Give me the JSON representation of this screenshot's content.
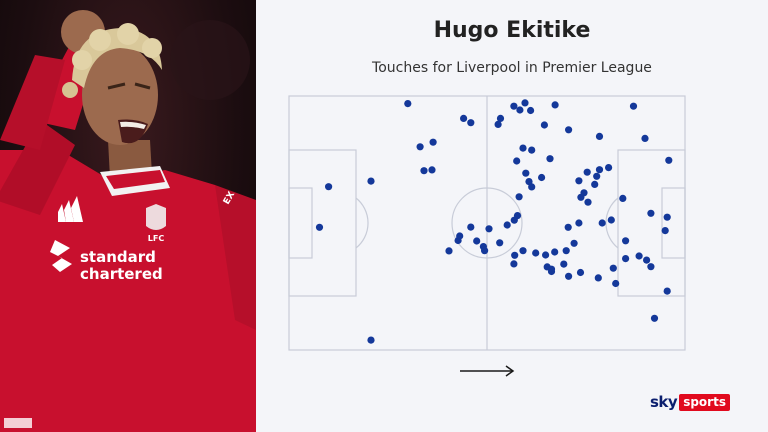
{
  "title": "Hugo Ekitike",
  "subtitle": "Touches for Liverpool in Premier League",
  "photo": {
    "shirt_sponsor": "standard chartered",
    "club_crest": "LFC"
  },
  "brand": {
    "sky": "sky",
    "sports": "sports"
  },
  "attack_direction_icon": "right-arrow-icon",
  "colors": {
    "dot": "#14389a",
    "pitch_line": "#c8ccd8",
    "background": "#f4f5f9",
    "shirt": "#c8102e"
  },
  "chart_data": {
    "type": "scatter",
    "title": "Hugo Ekitike",
    "subtitle": "Touches for Liverpool in Premier League",
    "xlim": [
      0,
      100
    ],
    "ylim": [
      0,
      100
    ],
    "direction_of_play": "left-to-right",
    "points": [
      [
        30.0,
        97.0
      ],
      [
        59.6,
        97.3
      ],
      [
        56.8,
        96.0
      ],
      [
        67.2,
        96.5
      ],
      [
        58.3,
        94.5
      ],
      [
        61.0,
        94.3
      ],
      [
        87.0,
        96.0
      ],
      [
        44.1,
        91.2
      ],
      [
        53.4,
        91.2
      ],
      [
        52.8,
        88.8
      ],
      [
        45.9,
        89.5
      ],
      [
        64.5,
        88.6
      ],
      [
        70.6,
        86.7
      ],
      [
        78.4,
        84.1
      ],
      [
        89.9,
        83.3
      ],
      [
        33.1,
        80.0
      ],
      [
        36.4,
        81.8
      ],
      [
        59.1,
        79.5
      ],
      [
        61.3,
        78.7
      ],
      [
        65.9,
        75.3
      ],
      [
        57.5,
        74.4
      ],
      [
        95.9,
        74.7
      ],
      [
        34.1,
        70.6
      ],
      [
        36.1,
        70.9
      ],
      [
        75.3,
        70.0
      ],
      [
        78.4,
        71.0
      ],
      [
        80.7,
        71.8
      ],
      [
        77.7,
        68.4
      ],
      [
        59.8,
        69.6
      ],
      [
        63.8,
        67.9
      ],
      [
        60.6,
        66.3
      ],
      [
        61.3,
        64.2
      ],
      [
        73.2,
        66.6
      ],
      [
        77.2,
        65.2
      ],
      [
        20.7,
        66.5
      ],
      [
        10.0,
        64.3
      ],
      [
        74.5,
        61.9
      ],
      [
        73.7,
        60.1
      ],
      [
        58.1,
        60.3
      ],
      [
        75.5,
        58.2
      ],
      [
        84.3,
        59.7
      ],
      [
        91.4,
        53.8
      ],
      [
        81.4,
        51.2
      ],
      [
        95.5,
        52.3
      ],
      [
        56.9,
        51.1
      ],
      [
        57.7,
        52.9
      ],
      [
        55.1,
        49.2
      ],
      [
        50.5,
        47.7
      ],
      [
        42.7,
        43.1
      ],
      [
        47.4,
        42.9
      ],
      [
        53.2,
        42.2
      ],
      [
        45.9,
        48.4
      ],
      [
        43.1,
        44.9
      ],
      [
        7.7,
        48.3
      ],
      [
        95.0,
        47.0
      ],
      [
        73.2,
        50.0
      ],
      [
        70.5,
        48.3
      ],
      [
        72.0,
        42.0
      ],
      [
        85.0,
        43.0
      ],
      [
        79.1,
        50.0
      ],
      [
        49.4,
        39.1
      ],
      [
        70.0,
        39.1
      ],
      [
        59.1,
        39.1
      ],
      [
        40.4,
        39.0
      ],
      [
        56.8,
        33.9
      ],
      [
        62.3,
        38.2
      ],
      [
        49.1,
        40.7
      ],
      [
        67.1,
        38.6
      ],
      [
        88.4,
        37.0
      ],
      [
        69.4,
        33.8
      ],
      [
        85.0,
        36.0
      ],
      [
        73.6,
        30.5
      ],
      [
        81.9,
        32.2
      ],
      [
        90.3,
        35.4
      ],
      [
        57.0,
        37.3
      ],
      [
        64.8,
        37.4
      ],
      [
        65.2,
        32.7
      ],
      [
        91.4,
        32.8
      ],
      [
        82.5,
        26.2
      ],
      [
        78.1,
        28.4
      ],
      [
        70.6,
        29.0
      ],
      [
        66.3,
        30.9
      ],
      [
        95.5,
        23.2
      ],
      [
        66.3,
        31.8
      ],
      [
        92.3,
        12.5
      ],
      [
        20.7,
        3.9
      ]
    ]
  }
}
